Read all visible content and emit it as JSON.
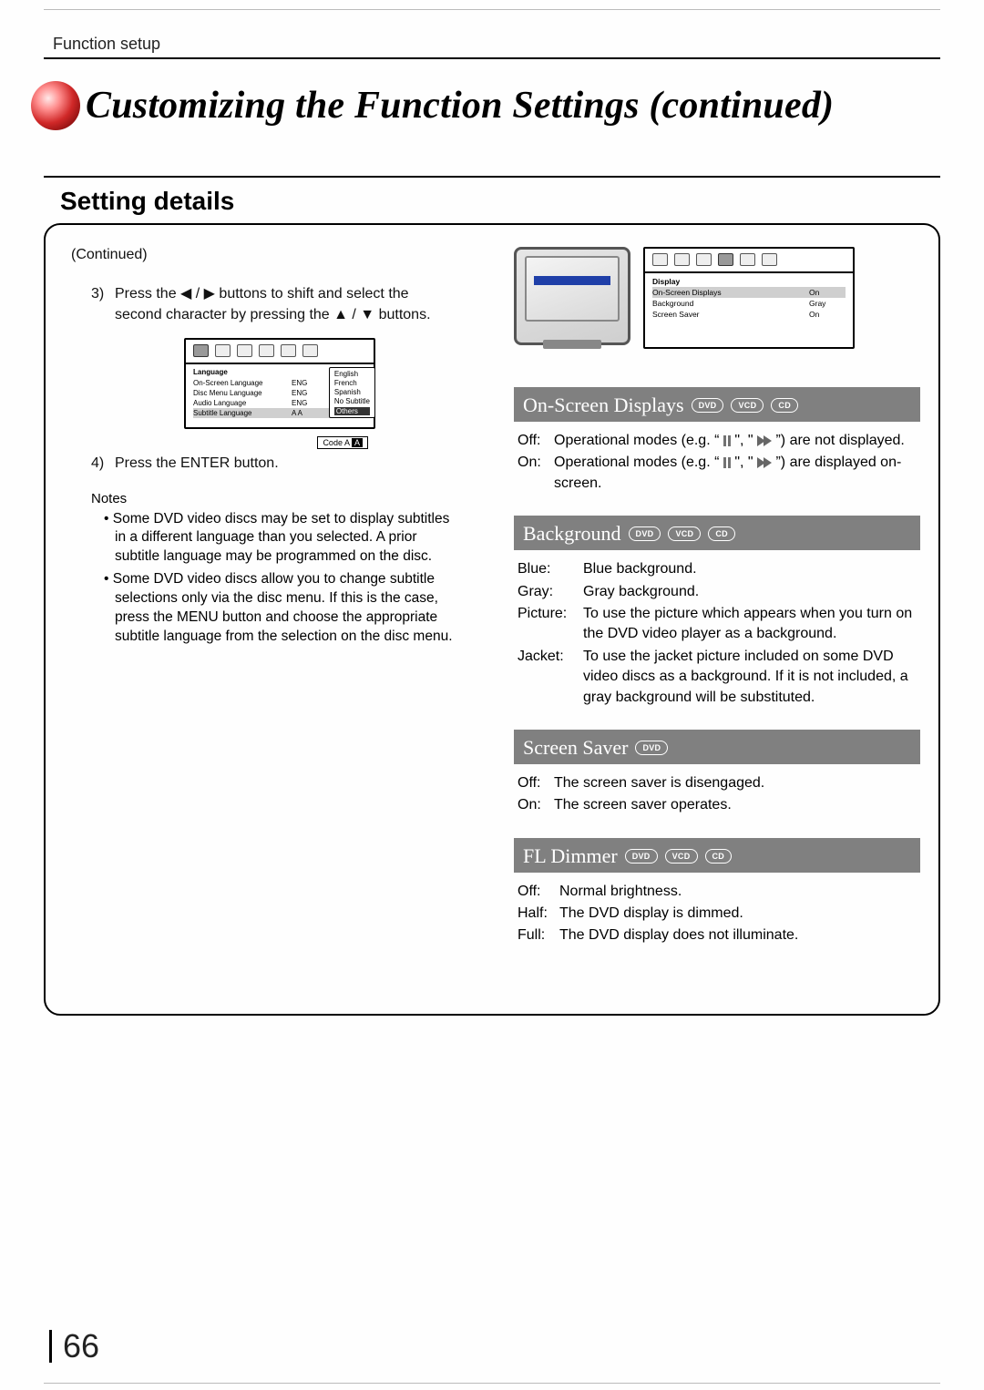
{
  "section_name": "Function setup",
  "main_title": "Customizing the Function Settings (continued)",
  "setting_details_label": "Setting details",
  "left": {
    "continued": "(Continued)",
    "step3_num": "3)",
    "step3_text": "Press the ◀ / ▶ buttons to shift and select the second character by pressing the ▲ / ▼ buttons.",
    "step4_num": "4)",
    "step4_text": "Press the ENTER button.",
    "notes_label": "Notes",
    "note1": "Some DVD video discs may be set to display subtitles in a different language than you selected. A prior subtitle language may be programmed on the disc.",
    "note2": "Some DVD video discs allow you to change subtitle selections only via the disc menu.  If this is the case, press the MENU button and choose the appropriate subtitle language from the selection on the disc menu.",
    "osd_menu": {
      "header": "Language",
      "rows": [
        {
          "label": "On-Screen Language",
          "val": "ENG",
          "opt": "English",
          "sel": false
        },
        {
          "label": "Disc Menu Language",
          "val": "ENG",
          "opt": "French",
          "sel": false
        },
        {
          "label": "Audio Language",
          "val": "ENG",
          "opt": "Spanish",
          "sel": false
        },
        {
          "label": "Subtitle Language",
          "val": "A  A",
          "opt": "No Subtitle",
          "sel": true
        }
      ],
      "side": [
        "English",
        "French",
        "Spanish",
        "No Subtitle"
      ],
      "others": "Others",
      "code_label": "Code",
      "code_chars": [
        "A",
        "A"
      ]
    }
  },
  "right": {
    "disp_menu": {
      "header": "Display",
      "rows": [
        {
          "label": "On-Screen Displays",
          "val": "On",
          "sel": true
        },
        {
          "label": "Background",
          "val": "Gray",
          "sel": false
        },
        {
          "label": "Screen Saver",
          "val": "On",
          "sel": false
        }
      ]
    },
    "sections": [
      {
        "title": "On-Screen Displays",
        "pills": [
          "DVD",
          "VCD",
          "CD"
        ],
        "rows": [
          {
            "k": "Off:",
            "v_pre": "Operational modes (e.g. “",
            "v_post": "”) are not displayed.",
            "icons": true
          },
          {
            "k": "On:",
            "v_pre": "Operational modes (e.g. “",
            "v_post": "”) are displayed on-screen.",
            "icons": true
          }
        ]
      },
      {
        "title": "Background",
        "pills": [
          "DVD",
          "VCD",
          "CD"
        ],
        "rows": [
          {
            "k": "Blue:",
            "v": "Blue background."
          },
          {
            "k": "Gray:",
            "v": "Gray background."
          },
          {
            "k": "Picture:",
            "v": "To use the picture which appears when you turn on the DVD video player as a background."
          },
          {
            "k": "Jacket:",
            "v": "To use the jacket picture included on some DVD video discs as a background. If it is not included, a gray background will be substituted."
          }
        ]
      },
      {
        "title": "Screen Saver",
        "pills": [
          "DVD"
        ],
        "rows": [
          {
            "k": "Off:",
            "v": "The screen saver is disengaged."
          },
          {
            "k": "On:",
            "v": "The screen saver operates."
          }
        ]
      },
      {
        "title": "FL Dimmer",
        "pills": [
          "DVD",
          "VCD",
          "CD"
        ],
        "rows": [
          {
            "k": "Off:",
            "v": "Normal brightness."
          },
          {
            "k": "Half:",
            "v": "The DVD display is dimmed."
          },
          {
            "k": "Full:",
            "v": "The DVD display does not illuminate."
          }
        ]
      }
    ]
  },
  "page_number": "66",
  "colors": {
    "subhead_bg": "#808080",
    "subhead_fg": "#ffffff",
    "ball_gradient": [
      "#ffe9e9",
      "#ff8f8f",
      "#d02828",
      "#7e0b0b"
    ]
  },
  "k_widths": {
    "sec0": 40,
    "sec1": 72,
    "sec2": 40,
    "sec3": 46
  }
}
